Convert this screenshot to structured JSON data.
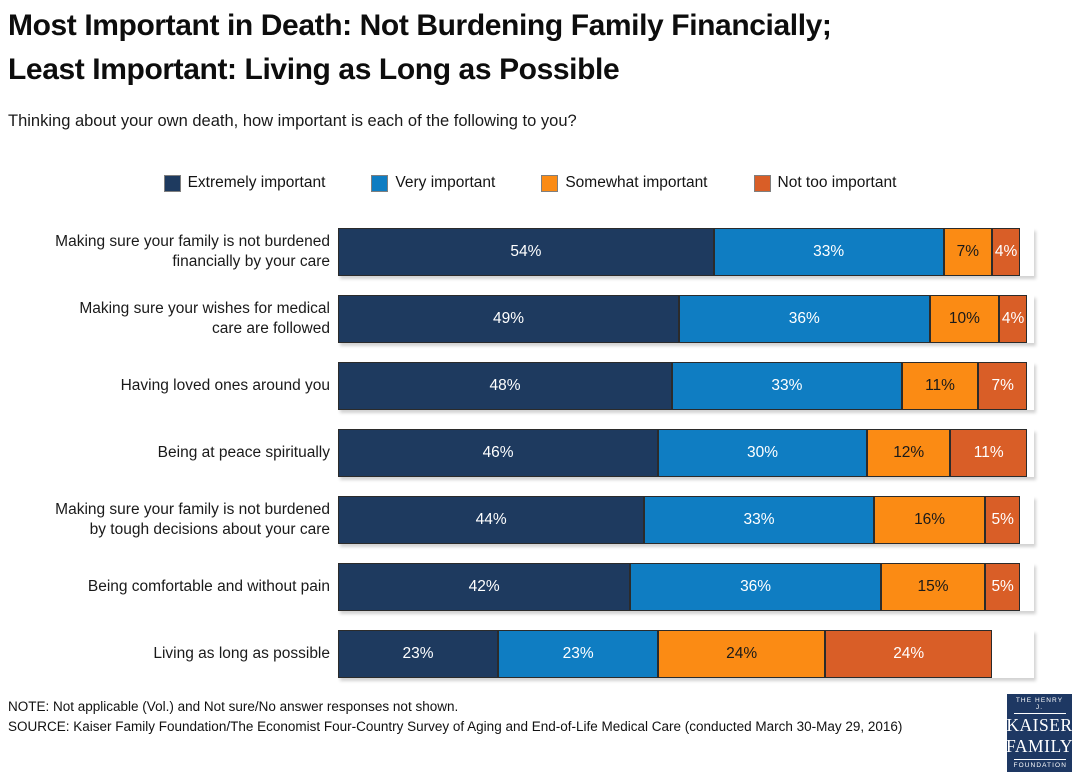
{
  "title": {
    "line1": "Most Important in Death: Not Burdening Family Financially;",
    "line2": "Least Important: Living as Long as Possible"
  },
  "subtitle": "Thinking about your own death, how important is each of the following to you?",
  "chart_data": {
    "type": "bar",
    "stacked": true,
    "orientation": "horizontal",
    "xlim": [
      0,
      100
    ],
    "value_suffix": "%",
    "legend_position": "top",
    "grid": false,
    "categories": [
      "Making sure your family is not burdened\nfinancially by your care",
      "Making sure your wishes for medical\ncare are followed",
      "Having loved ones around you",
      "Being at peace spiritually",
      "Making sure your family is not burdened\nby tough decisions about your care",
      "Being comfortable and without pain",
      "Living as long as possible"
    ],
    "series": [
      {
        "name": "Extremely important",
        "color": "#1e3a5f",
        "label_color": "#ffffff",
        "values": [
          54,
          49,
          48,
          46,
          44,
          42,
          23
        ]
      },
      {
        "name": "Very important",
        "color": "#0f7dc2",
        "label_color": "#ffffff",
        "values": [
          33,
          36,
          33,
          30,
          33,
          36,
          23
        ]
      },
      {
        "name": "Somewhat important",
        "color": "#fb8b14",
        "label_color": "#1a1a1a",
        "values": [
          7,
          10,
          11,
          12,
          16,
          15,
          24
        ]
      },
      {
        "name": "Not too important",
        "color": "#d95e27",
        "label_color": "#ffffff",
        "values": [
          4,
          4,
          7,
          11,
          5,
          5,
          24
        ]
      }
    ]
  },
  "footer": {
    "note": "NOTE: Not applicable (Vol.) and Not sure/No answer responses not shown.",
    "source": "SOURCE: Kaiser Family Foundation/The Economist Four-Country Survey of Aging and End-of-Life Medical Care (conducted March 30-May 29, 2016)"
  },
  "logo": {
    "bg": "#1e3863",
    "line1": "THE HENRY J.",
    "line2": "KAISER",
    "line3": "FAMILY",
    "line4": "FOUNDATION"
  }
}
